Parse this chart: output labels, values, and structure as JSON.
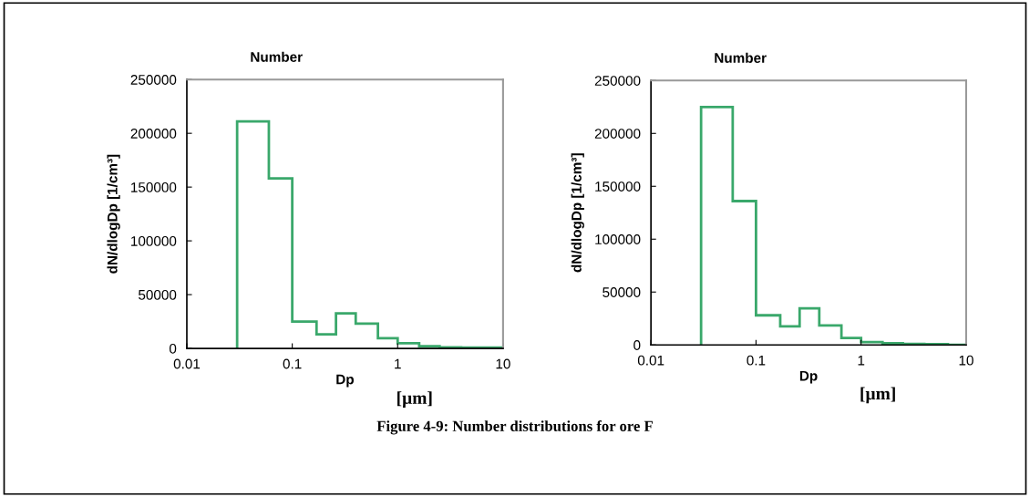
{
  "chart_data": [
    {
      "type": "histogram",
      "title": "Number",
      "xlabel": "Dp",
      "ylabel": "dN/dlogDp [1/cm³]",
      "log": "x",
      "bins": [
        0.03,
        0.06,
        0.1,
        0.17,
        0.26,
        0.4,
        0.65,
        1.0,
        1.6,
        2.5,
        4.0,
        6.7,
        10
      ],
      "values": [
        211000,
        158000,
        25000,
        13000,
        32500,
        23000,
        9500,
        4800,
        2000,
        1000,
        800,
        800
      ],
      "color": "#3aa86b",
      "xlim": [
        0.01,
        10
      ],
      "xticks": [
        0.01,
        0.1,
        1,
        10
      ],
      "ylim": [
        0,
        250000
      ],
      "yticks": [
        0,
        50000,
        100000,
        150000,
        200000,
        250000
      ],
      "grid": false,
      "annotations": [
        "[µm]",
        "Figure 4-9: Number distributions for ore F"
      ]
    },
    {
      "type": "histogram",
      "title": "Number",
      "xlabel": "Dp",
      "ylabel": "dN/dlogDp [1/cm³]",
      "log": "x",
      "bins": [
        0.03,
        0.06,
        0.1,
        0.17,
        0.26,
        0.4,
        0.65,
        1.0,
        1.6,
        2.5,
        4.0,
        6.7,
        10
      ],
      "values": [
        225000,
        136000,
        28000,
        17500,
        34500,
        18500,
        6500,
        2600,
        1500,
        1000,
        800,
        0
      ],
      "color": "#3aa86b",
      "xlim": [
        0.01,
        10
      ],
      "xticks": [
        0.01,
        0.1,
        1,
        10
      ],
      "ylim": [
        0,
        250000
      ],
      "yticks": [
        0,
        50000,
        100000,
        150000,
        200000,
        250000
      ],
      "grid": false,
      "annotations": [
        "[µm]"
      ]
    }
  ]
}
